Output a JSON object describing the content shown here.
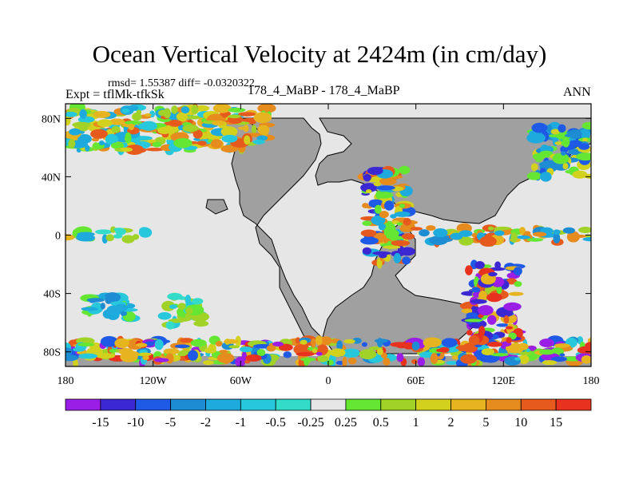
{
  "chart_data": {
    "type": "heatmap",
    "title": "Ocean Vertical Velocity at 2424m (in cm/day)",
    "stats_text": "rmsd= 1.55387  diff= -0.0320322",
    "experiment_label": "Expt = tflMk-tfkSk",
    "case_label": "178_4_MaBP - 178_4_MaBP",
    "season": "ANN",
    "x_ticks": [
      "180",
      "120W",
      "60W",
      "0",
      "60E",
      "120E",
      "180"
    ],
    "y_ticks": [
      "80N",
      "40N",
      "0",
      "40S",
      "80S"
    ],
    "lon_range": [
      -180,
      180
    ],
    "lat_range": [
      -90,
      90
    ],
    "land_color": "#a0a0a0",
    "background_color": "#e6e6e6",
    "colorbar": {
      "colors": [
        "#9a1ee6",
        "#3c28d2",
        "#1e5ae6",
        "#1e8cd2",
        "#1eaadc",
        "#28c8dc",
        "#32dcc8",
        "#e6e6e6",
        "#64e632",
        "#a0d228",
        "#d2d21e",
        "#e6b41e",
        "#e68c1e",
        "#e65a1e",
        "#e6321e"
      ],
      "labels": [
        "-15",
        "-10",
        "-5",
        "-2",
        "-1",
        "-0.5",
        "-0.25",
        "0.25",
        "0.5",
        "1",
        "2",
        "5",
        "10",
        "15"
      ]
    },
    "features": [
      {
        "name": "southern-ocean-band",
        "lon": [
          -180,
          180
        ],
        "lat": [
          -88,
          -72
        ],
        "range": "-15 to 15",
        "desc": "strong mixed positive/negative near Antarctic coast"
      },
      {
        "name": "arctic-band",
        "lon": [
          -180,
          -40
        ],
        "lat": [
          58,
          88
        ],
        "range": "-5 to 10"
      },
      {
        "name": "equatorial-pacific-band",
        "lon": [
          -180,
          -125
        ],
        "lat": [
          -3,
          4
        ],
        "range": "-2 to 2"
      },
      {
        "name": "south-pacific-cell-west",
        "lon": [
          -165,
          -135
        ],
        "lat": [
          -58,
          -40
        ],
        "range": "-2 to 0.5"
      },
      {
        "name": "south-pacific-cell-east",
        "lon": [
          -115,
          -85
        ],
        "lat": [
          -62,
          -42
        ],
        "range": "-1 to 1"
      },
      {
        "name": "east-asian-coast",
        "lon": [
          25,
          55
        ],
        "lat": [
          -20,
          45
        ],
        "range": "-10 to 10"
      },
      {
        "name": "indo-pacific-equatorial",
        "lon": [
          60,
          180
        ],
        "lat": [
          -5,
          5
        ],
        "range": "-5 to 10"
      },
      {
        "name": "southwest-pacific-coast",
        "lon": [
          95,
          130
        ],
        "lat": [
          -75,
          -20
        ],
        "range": "-15 to 15"
      },
      {
        "name": "north-pacific-east",
        "lon": [
          140,
          180
        ],
        "lat": [
          40,
          75
        ],
        "range": "-5 to 5"
      }
    ]
  }
}
